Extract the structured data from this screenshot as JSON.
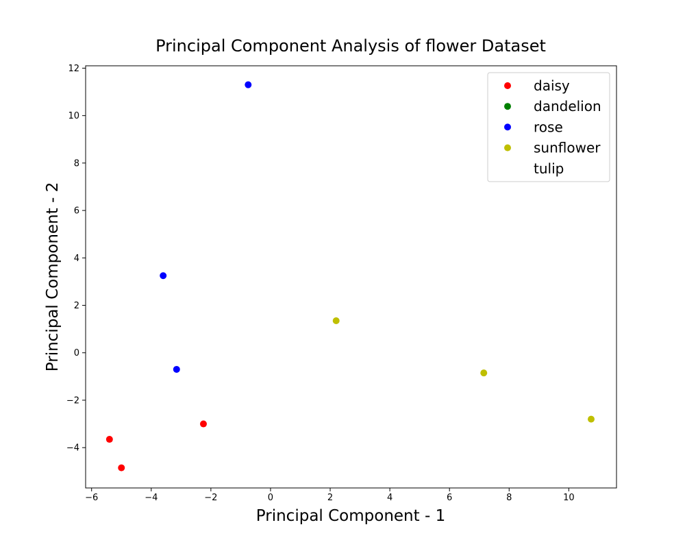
{
  "chart_data": {
    "type": "scatter",
    "title": "Principal Component Analysis of flower Dataset",
    "xlabel": "Principal Component - 1",
    "ylabel": "Principal Component - 2",
    "xlim": [
      -6.2,
      11.6
    ],
    "ylim": [
      -5.7,
      12.1
    ],
    "xticks": [
      -6,
      -4,
      -2,
      0,
      2,
      4,
      6,
      8,
      10
    ],
    "yticks": [
      -4,
      -2,
      0,
      2,
      4,
      6,
      8,
      10,
      12
    ],
    "grid": false,
    "legend": "top-right",
    "series": [
      {
        "name": "daisy",
        "color": "#ff0000",
        "points": [
          [
            -5.4,
            -3.65
          ],
          [
            -5.0,
            -4.85
          ],
          [
            -2.25,
            -3.0
          ]
        ]
      },
      {
        "name": "dandelion",
        "color": "#008000",
        "points": []
      },
      {
        "name": "rose",
        "color": "#0000ff",
        "points": [
          [
            -0.75,
            11.3
          ],
          [
            -3.6,
            3.25
          ],
          [
            -3.15,
            -0.7
          ]
        ]
      },
      {
        "name": "sunflower",
        "color": "#bfbf00",
        "points": [
          [
            2.2,
            1.35
          ],
          [
            7.15,
            -0.85
          ],
          [
            10.75,
            -2.8
          ]
        ]
      },
      {
        "name": "tulip",
        "color": "#ffffff",
        "points": []
      }
    ]
  }
}
